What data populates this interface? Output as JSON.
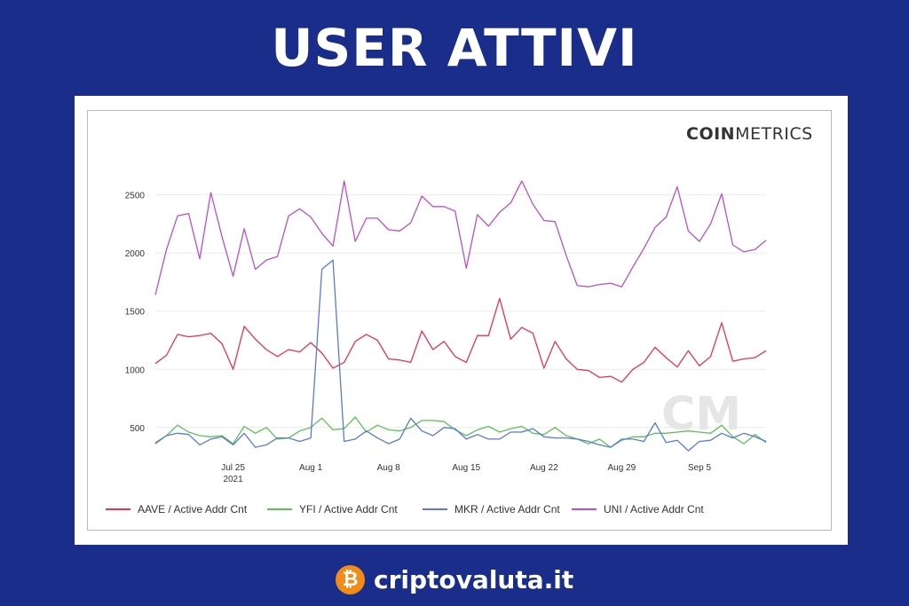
{
  "header": {
    "title": "USER ATTIVI"
  },
  "brand": {
    "bold": "COIN",
    "light": "METRICS"
  },
  "watermark": "CM",
  "footer": {
    "site": "criptovaluta.it",
    "coin_symbol": "₿",
    "coin_color": "#f28c19"
  },
  "chart_data": {
    "type": "line",
    "ylim": [
      300,
      2650
    ],
    "yticks": [
      500,
      1000,
      1500,
      2000,
      2500
    ],
    "xtick_labels": [
      {
        "label": "Jul 25",
        "sub": "2021",
        "index": 7
      },
      {
        "label": "Aug 1",
        "sub": "",
        "index": 14
      },
      {
        "label": "Aug 8",
        "sub": "",
        "index": 21
      },
      {
        "label": "Aug 15",
        "sub": "",
        "index": 28
      },
      {
        "label": "Aug 22",
        "sub": "",
        "index": 35
      },
      {
        "label": "Aug 29",
        "sub": "",
        "index": 42
      },
      {
        "label": "Sep 5",
        "sub": "",
        "index": 49
      }
    ],
    "x_count": 56,
    "grid": true,
    "legend_position": "bottom",
    "series": [
      {
        "name": "AAVE / Active Addr Cnt",
        "color": "#e8315a",
        "values": [
          1050,
          1120,
          1300,
          1280,
          1290,
          1310,
          1220,
          1000,
          1370,
          1260,
          1170,
          1110,
          1170,
          1150,
          1230,
          1140,
          1010,
          1060,
          1240,
          1300,
          1250,
          1090,
          1080,
          1060,
          1330,
          1170,
          1240,
          1110,
          1060,
          1290,
          1290,
          1610,
          1260,
          1360,
          1310,
          1010,
          1240,
          1090,
          1000,
          990,
          930,
          940,
          890,
          1000,
          1060,
          1190,
          1100,
          1020,
          1160,
          1030,
          1110,
          1400,
          1070,
          1090,
          1100,
          1160
        ]
      },
      {
        "name": "YFI / Active Addr Cnt",
        "color": "#5cc257",
        "values": [
          370,
          430,
          520,
          460,
          430,
          420,
          430,
          360,
          510,
          450,
          500,
          400,
          410,
          470,
          500,
          580,
          480,
          490,
          590,
          460,
          520,
          480,
          470,
          500,
          560,
          560,
          550,
          480,
          430,
          480,
          510,
          460,
          490,
          510,
          450,
          440,
          500,
          430,
          400,
          360,
          400,
          330,
          390,
          420,
          420,
          450,
          450,
          460,
          470,
          460,
          450,
          520,
          420,
          360,
          440,
          370
        ]
      },
      {
        "name": "MKR / Active Addr Cnt",
        "color": "#5a79d9",
        "values": [
          360,
          430,
          450,
          440,
          350,
          400,
          420,
          350,
          450,
          330,
          350,
          410,
          410,
          380,
          410,
          1860,
          1940,
          380,
          400,
          470,
          410,
          360,
          400,
          580,
          470,
          430,
          500,
          490,
          400,
          440,
          400,
          400,
          460,
          460,
          490,
          420,
          410,
          410,
          400,
          380,
          350,
          330,
          400,
          400,
          380,
          540,
          370,
          390,
          300,
          380,
          390,
          450,
          410,
          450,
          420,
          380
        ]
      },
      {
        "name": "UNI / Active Addr Cnt",
        "color": "#b94fd0",
        "values": [
          1640,
          2030,
          2320,
          2340,
          1950,
          2520,
          2140,
          1800,
          2210,
          1860,
          1940,
          1970,
          2320,
          2380,
          2310,
          2170,
          2060,
          2620,
          2100,
          2300,
          2300,
          2200,
          2190,
          2260,
          2490,
          2400,
          2400,
          2360,
          1870,
          2330,
          2230,
          2350,
          2430,
          2620,
          2420,
          2280,
          2270,
          1980,
          1720,
          1710,
          1730,
          1740,
          1710,
          1880,
          2040,
          2220,
          2310,
          2570,
          2190,
          2100,
          2250,
          2510,
          2070,
          2010,
          2030,
          2110
        ]
      }
    ]
  }
}
